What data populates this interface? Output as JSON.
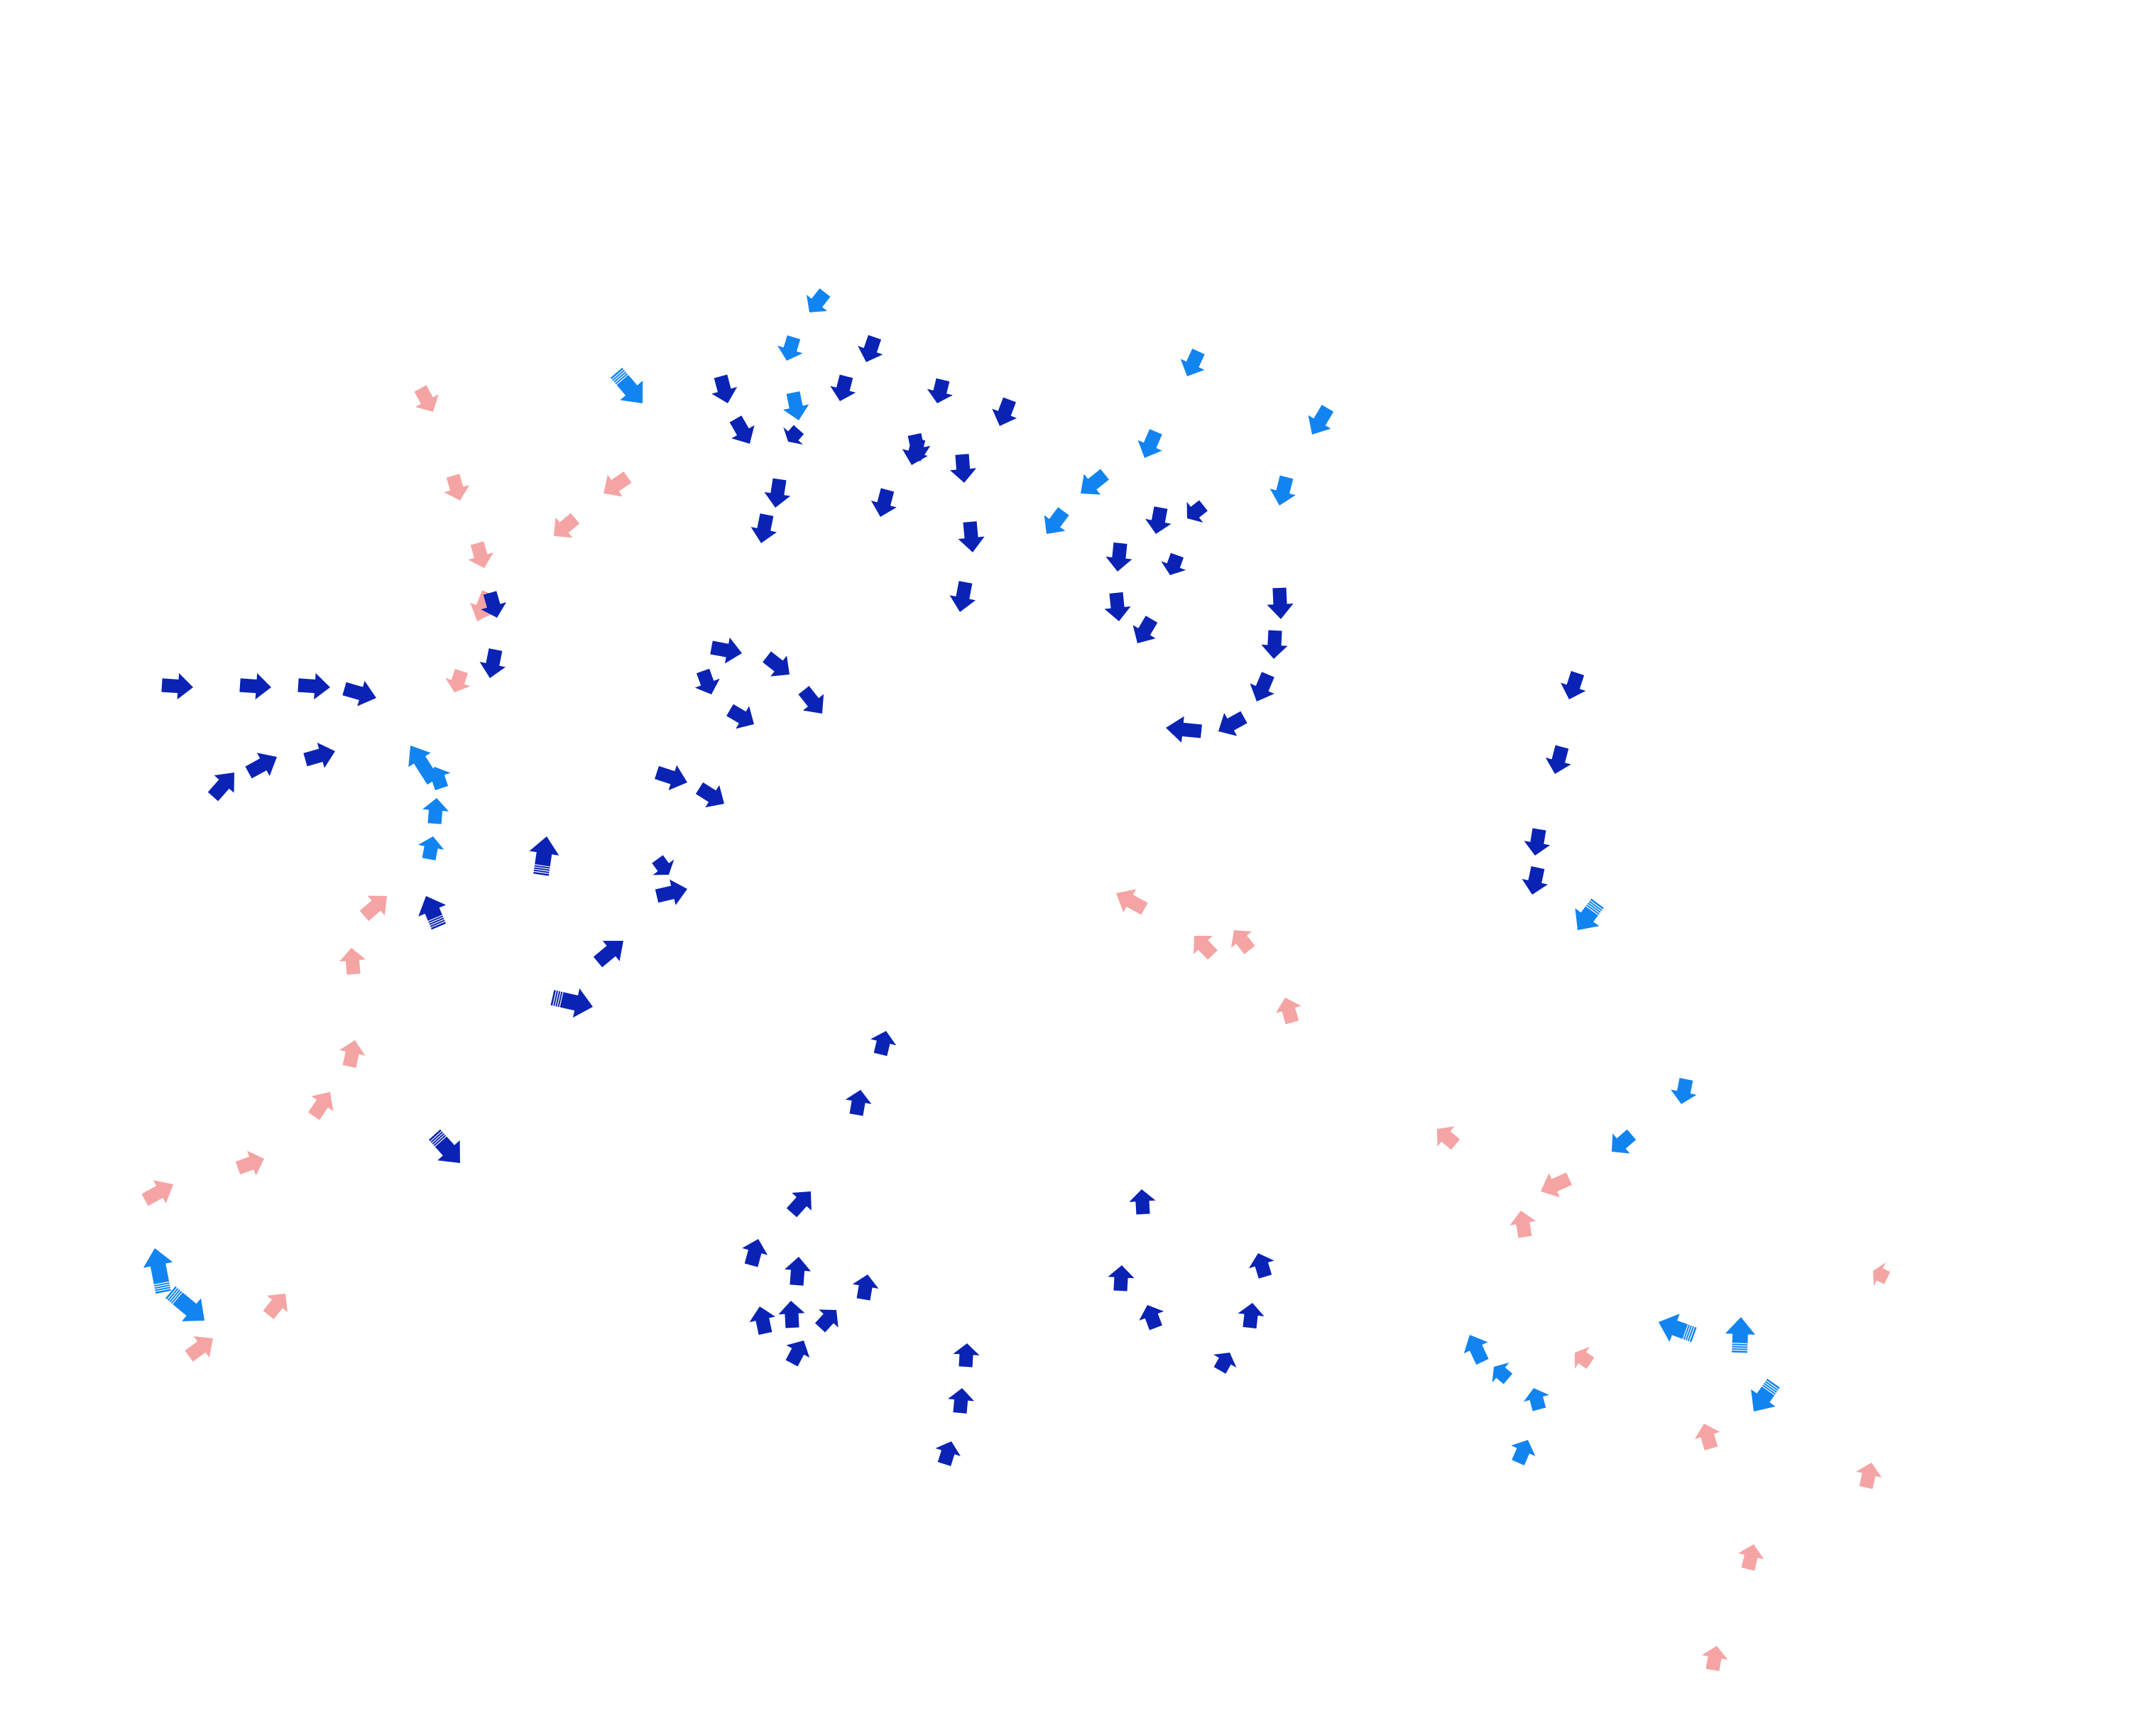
{
  "palette": {
    "navy": "#0a23b4",
    "sky": "#1284f0",
    "pink": "#f5a4a4",
    "background": "#ffffff"
  },
  "icon": "block-arrow-icon",
  "arrow_count": 158
}
